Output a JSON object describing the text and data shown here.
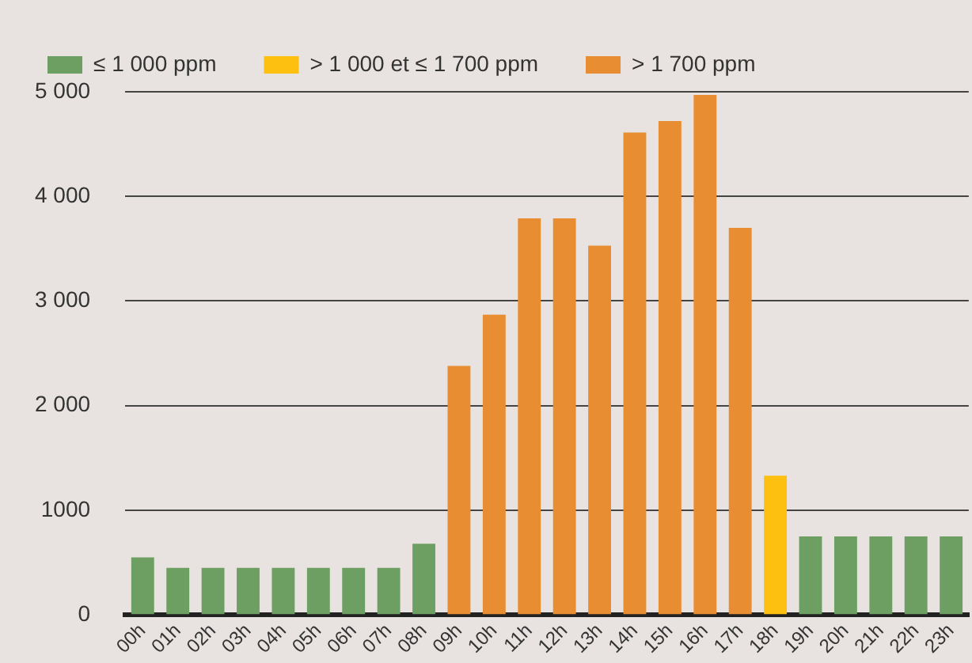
{
  "chart_data": {
    "type": "bar",
    "categories": [
      "00h",
      "01h",
      "02h",
      "03h",
      "04h",
      "05h",
      "06h",
      "07h",
      "08h",
      "09h",
      "10h",
      "11h",
      "12h",
      "13h",
      "14h",
      "15h",
      "16h",
      "17h",
      "18h",
      "19h",
      "20h",
      "21h",
      "22h",
      "23h"
    ],
    "series": [
      {
        "name": "≤ 1 000 ppm",
        "color": "#6e9f62",
        "values": [
          550,
          450,
          450,
          450,
          450,
          450,
          450,
          450,
          680,
          null,
          null,
          null,
          null,
          null,
          null,
          null,
          null,
          null,
          null,
          750,
          750,
          750,
          750,
          750
        ]
      },
      {
        "name": "> 1 000 et ≤ 1 700 ppm",
        "color": "#fdc010",
        "values": [
          null,
          null,
          null,
          null,
          null,
          null,
          null,
          null,
          null,
          null,
          null,
          null,
          null,
          null,
          null,
          null,
          null,
          null,
          1330,
          null,
          null,
          null,
          null,
          null
        ]
      },
      {
        "name": "> 1 700 ppm",
        "color": "#e98d32",
        "values": [
          null,
          null,
          null,
          null,
          null,
          null,
          null,
          null,
          null,
          2380,
          2870,
          3790,
          3790,
          3530,
          4610,
          4720,
          4970,
          3700,
          null,
          null,
          null,
          null,
          null,
          null
        ]
      }
    ],
    "ylim": [
      0,
      5000
    ],
    "yticks": [
      0,
      {
        "value": 1000,
        "label": "1000"
      },
      {
        "value": 2000,
        "label": "2 000"
      },
      {
        "value": 3000,
        "label": "3 000"
      },
      {
        "value": 4000,
        "label": "4 000"
      },
      {
        "value": 5000,
        "label": "5 000"
      }
    ],
    "grid": "y",
    "legend": "top left"
  }
}
